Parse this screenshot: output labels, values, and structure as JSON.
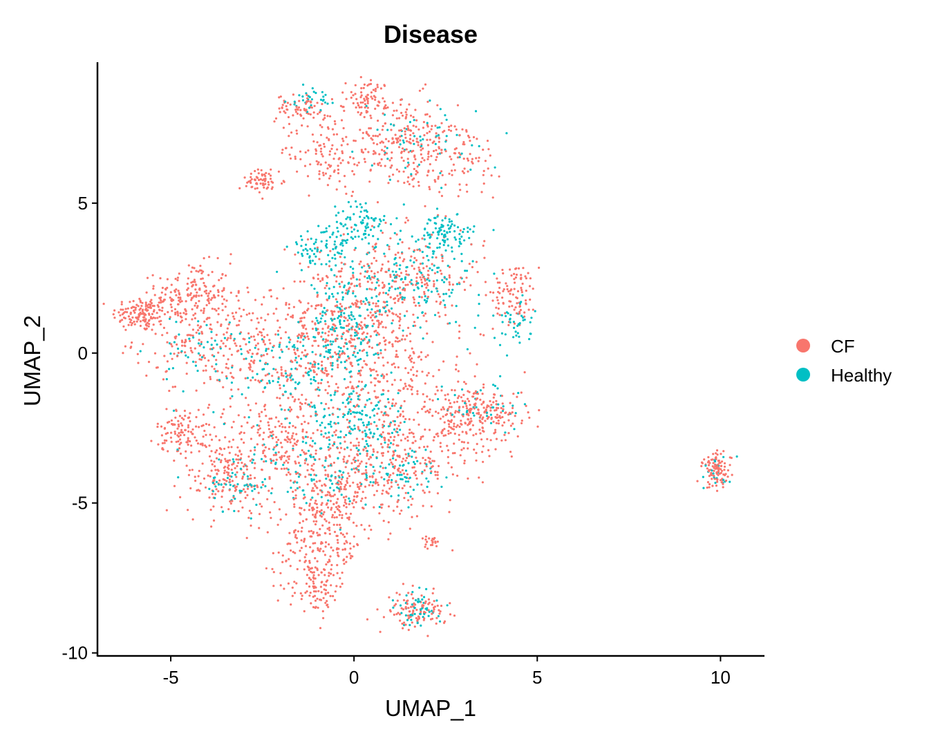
{
  "chart_data": {
    "type": "scatter",
    "title": "Disease",
    "xlabel": "UMAP_1",
    "ylabel": "UMAP_2",
    "xlim": [
      -7,
      11.2
    ],
    "ylim": [
      -10.1,
      9.7
    ],
    "xticks": [
      -5,
      0,
      5,
      10
    ],
    "yticks": [
      -10,
      -5,
      0,
      5
    ],
    "grid": false,
    "legend_position": "right",
    "legend": [
      {
        "name": "CF",
        "color": "#F8766D"
      },
      {
        "name": "Healthy",
        "color": "#00BFC4"
      }
    ],
    "series": [
      {
        "name": "CF",
        "color": "#F8766D",
        "note_clusters": "approximate point cloud regions (centers x,y in data units, spread, point count)",
        "clusters": [
          [
            -5.8,
            1.3,
            0.4,
            0.3,
            140
          ],
          [
            -4.4,
            2.0,
            0.5,
            0.5,
            160
          ],
          [
            -4.2,
            0.5,
            0.9,
            0.7,
            160
          ],
          [
            -2.5,
            5.7,
            0.3,
            0.2,
            60
          ],
          [
            -1.5,
            8.2,
            0.3,
            0.2,
            60
          ],
          [
            0.4,
            8.5,
            0.3,
            0.3,
            70
          ],
          [
            1.2,
            7.0,
            0.8,
            0.8,
            200
          ],
          [
            -0.8,
            6.8,
            0.6,
            0.7,
            120
          ],
          [
            2.5,
            6.5,
            0.9,
            0.7,
            120
          ],
          [
            4.4,
            2.0,
            0.3,
            0.5,
            90
          ],
          [
            1.2,
            2.5,
            1.2,
            0.8,
            250
          ],
          [
            0.0,
            1.0,
            1.0,
            1.0,
            250
          ],
          [
            -2.0,
            0.0,
            1.2,
            1.2,
            260
          ],
          [
            -4.6,
            -2.6,
            0.4,
            0.4,
            110
          ],
          [
            -3.5,
            -4.2,
            0.6,
            0.6,
            150
          ],
          [
            -2.0,
            -3.0,
            0.9,
            0.8,
            220
          ],
          [
            -0.5,
            -4.8,
            0.8,
            0.8,
            240
          ],
          [
            1.2,
            -3.5,
            0.9,
            0.9,
            260
          ],
          [
            -1.0,
            -6.5,
            0.6,
            0.7,
            150
          ],
          [
            -1.0,
            -7.8,
            0.4,
            0.4,
            90
          ],
          [
            1.7,
            -8.6,
            0.4,
            0.3,
            110
          ],
          [
            2.1,
            -6.3,
            0.1,
            0.1,
            20
          ],
          [
            3.0,
            -2.2,
            0.5,
            0.6,
            160
          ],
          [
            4.0,
            -2.0,
            0.4,
            0.4,
            80
          ],
          [
            1.0,
            -1.0,
            1.2,
            1.0,
            220
          ],
          [
            9.9,
            -3.9,
            0.2,
            0.3,
            100
          ]
        ]
      },
      {
        "name": "Healthy",
        "color": "#00BFC4",
        "clusters": [
          [
            -1.2,
            8.4,
            0.3,
            0.2,
            30
          ],
          [
            1.8,
            7.0,
            0.8,
            0.6,
            60
          ],
          [
            2.5,
            4.0,
            0.4,
            0.3,
            90
          ],
          [
            0.2,
            4.3,
            0.4,
            0.4,
            80
          ],
          [
            -0.8,
            3.5,
            0.5,
            0.4,
            80
          ],
          [
            1.5,
            2.5,
            1.0,
            0.8,
            180
          ],
          [
            -0.2,
            0.8,
            0.5,
            0.8,
            160
          ],
          [
            4.3,
            1.0,
            0.3,
            0.4,
            40
          ],
          [
            -1.8,
            -0.5,
            1.0,
            0.8,
            120
          ],
          [
            0.0,
            -2.2,
            0.6,
            0.6,
            140
          ],
          [
            -3.2,
            -4.3,
            0.5,
            0.5,
            60
          ],
          [
            -0.8,
            -4.0,
            0.8,
            0.8,
            90
          ],
          [
            1.2,
            -4.0,
            0.6,
            0.6,
            70
          ],
          [
            1.8,
            -8.5,
            0.3,
            0.3,
            50
          ],
          [
            3.5,
            -1.8,
            0.5,
            0.5,
            40
          ],
          [
            9.9,
            -4.0,
            0.2,
            0.3,
            20
          ],
          [
            -4.5,
            0.2,
            0.6,
            0.6,
            40
          ]
        ]
      }
    ]
  }
}
